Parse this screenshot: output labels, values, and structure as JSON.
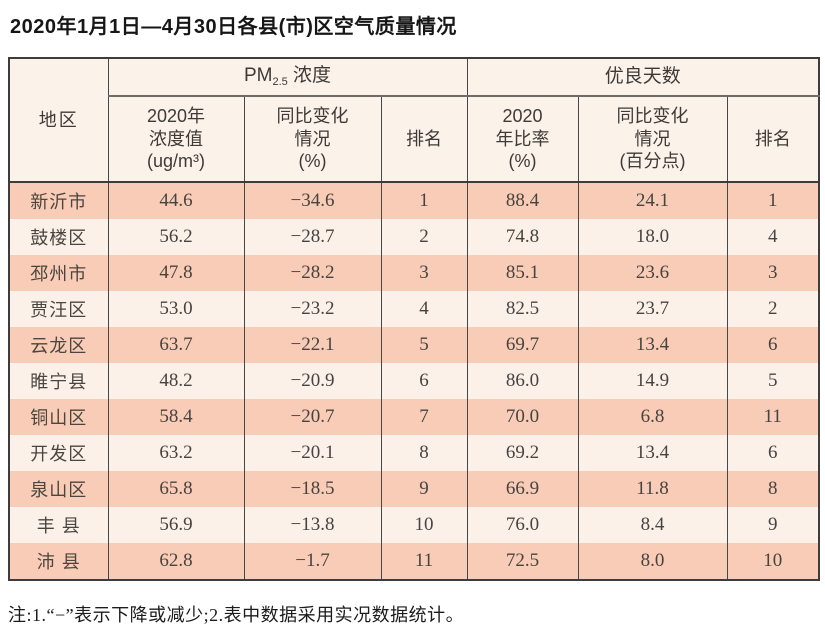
{
  "page": {
    "title": "2020年1月1日—4月30日各县(市)区空气质量情况",
    "note": "注:1.“−”表示下降或减少;2.表中数据采用实况数据统计。"
  },
  "table": {
    "region_header": "地区",
    "group_pm": {
      "prefix": "PM",
      "sub": "2.5",
      "suffix": " 浓度"
    },
    "group_good": "优良天数",
    "sub_headers": {
      "pm_value": "2020年\n浓度值\n(ug/m³)",
      "pm_change": "同比变化\n情况\n(%)",
      "pm_rank": "排名",
      "good_ratio": "2020\n年比率\n(%)",
      "good_change": "同比变化\n情况\n(百分点)",
      "good_rank": "排名"
    },
    "rows": [
      {
        "region": "新沂市",
        "pm_value": "44.6",
        "pm_change": "−34.6",
        "pm_rank": "1",
        "good_ratio": "88.4",
        "good_change": "24.1",
        "good_rank": "1"
      },
      {
        "region": "鼓楼区",
        "pm_value": "56.2",
        "pm_change": "−28.7",
        "pm_rank": "2",
        "good_ratio": "74.8",
        "good_change": "18.0",
        "good_rank": "4"
      },
      {
        "region": "邳州市",
        "pm_value": "47.8",
        "pm_change": "−28.2",
        "pm_rank": "3",
        "good_ratio": "85.1",
        "good_change": "23.6",
        "good_rank": "3"
      },
      {
        "region": "贾汪区",
        "pm_value": "53.0",
        "pm_change": "−23.2",
        "pm_rank": "4",
        "good_ratio": "82.5",
        "good_change": "23.7",
        "good_rank": "2"
      },
      {
        "region": "云龙区",
        "pm_value": "63.7",
        "pm_change": "−22.1",
        "pm_rank": "5",
        "good_ratio": "69.7",
        "good_change": "13.4",
        "good_rank": "6"
      },
      {
        "region": "睢宁县",
        "pm_value": "48.2",
        "pm_change": "−20.9",
        "pm_rank": "6",
        "good_ratio": "86.0",
        "good_change": "14.9",
        "good_rank": "5"
      },
      {
        "region": "铜山区",
        "pm_value": "58.4",
        "pm_change": "−20.7",
        "pm_rank": "7",
        "good_ratio": "70.0",
        "good_change": "6.8",
        "good_rank": "11"
      },
      {
        "region": "开发区",
        "pm_value": "63.2",
        "pm_change": "−20.1",
        "pm_rank": "8",
        "good_ratio": "69.2",
        "good_change": "13.4",
        "good_rank": "6"
      },
      {
        "region": "泉山区",
        "pm_value": "65.8",
        "pm_change": "−18.5",
        "pm_rank": "9",
        "good_ratio": "66.9",
        "good_change": "11.8",
        "good_rank": "8"
      },
      {
        "region": "丰 县",
        "pm_value": "56.9",
        "pm_change": "−13.8",
        "pm_rank": "10",
        "good_ratio": "76.0",
        "good_change": "8.4",
        "good_rank": "9"
      },
      {
        "region": "沛 县",
        "pm_value": "62.8",
        "pm_change": "−1.7",
        "pm_rank": "11",
        "good_ratio": "72.5",
        "good_change": "8.0",
        "good_rank": "10"
      }
    ],
    "colors": {
      "row_salmon": "#f8ccb6",
      "row_light": "#fcf1e9",
      "header_bg": "#fbf2e9",
      "border_dark": "#3d3d3d"
    }
  }
}
